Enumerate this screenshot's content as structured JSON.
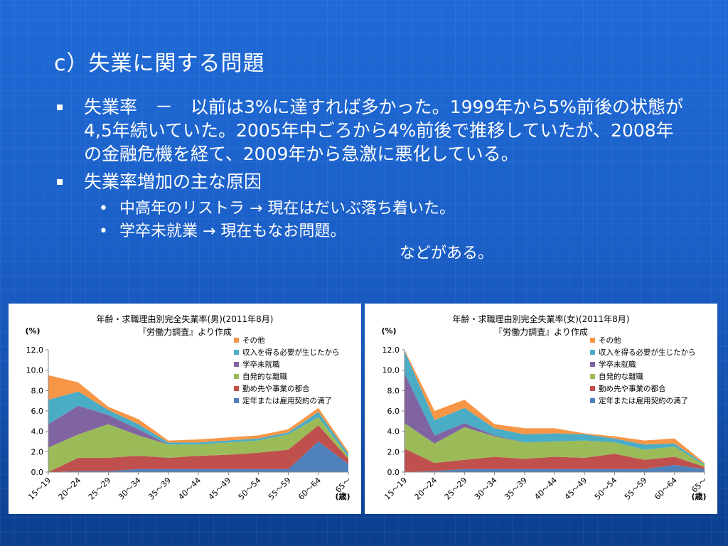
{
  "slide": {
    "title": "c）失業に関する問題",
    "bullets": [
      {
        "text": "失業率　－　以前は3%に達すれば多かった。1999年から5%前後の状態が4,5年続いていた。2005年中ごろから4%前後で推移していたが、2008年の金融危機を経て、2009年から急激に悪化している。"
      },
      {
        "text": "失業率増加の主な原因"
      }
    ],
    "subbullets": [
      {
        "text": "中高年のリストラ → 現在はだいぶ落ち着いた。"
      },
      {
        "text": "学卒未就業 → 現在もなお問題。"
      }
    ],
    "note": "などがある。"
  },
  "chart_data": [
    {
      "type": "area",
      "stacked": true,
      "title": "年齢・求職理由別完全失業率(男)(2011年8月)",
      "subtitle": "『労働力調査』より作成",
      "ylabel": "(%)",
      "xlabel": "(歳)",
      "ylim": [
        0,
        12
      ],
      "yticks": [
        "0.0",
        "2.0",
        "4.0",
        "6.0",
        "8.0",
        "10.0",
        "12.0"
      ],
      "categories": [
        "15～19",
        "20～24",
        "25～29",
        "30～34",
        "35～39",
        "40～44",
        "45～49",
        "50～54",
        "55～59",
        "60～64",
        "65～"
      ],
      "legend_position": "top-right",
      "series": [
        {
          "name": "定年または雇用契約の満了",
          "color": "#4f81bd",
          "values": [
            0.0,
            0.1,
            0.1,
            0.3,
            0.3,
            0.3,
            0.3,
            0.3,
            0.3,
            3.0,
            0.8
          ]
        },
        {
          "name": "勤め先や事業の都合",
          "color": "#c0504d",
          "values": [
            0.0,
            1.3,
            1.3,
            1.3,
            1.1,
            1.3,
            1.4,
            1.6,
            1.9,
            1.6,
            0.5
          ]
        },
        {
          "name": "自発的な離職",
          "color": "#9bbb59",
          "values": [
            2.4,
            2.3,
            3.3,
            2.0,
            1.3,
            1.1,
            1.2,
            1.2,
            1.5,
            0.8,
            0.2
          ]
        },
        {
          "name": "学卒未就職",
          "color": "#8064a2",
          "values": [
            2.3,
            2.8,
            0.9,
            0.6,
            0.0,
            0.0,
            0.0,
            0.0,
            0.0,
            0.0,
            0.0
          ]
        },
        {
          "name": "収入を得る必要が生じたから",
          "color": "#4bacc6",
          "values": [
            2.4,
            1.4,
            0.5,
            0.5,
            0.2,
            0.2,
            0.2,
            0.2,
            0.2,
            0.5,
            0.3
          ]
        },
        {
          "name": "その他",
          "color": "#f79646",
          "values": [
            2.4,
            0.9,
            0.3,
            0.5,
            0.2,
            0.3,
            0.3,
            0.3,
            0.3,
            0.4,
            0.2
          ]
        }
      ]
    },
    {
      "type": "area",
      "stacked": true,
      "title": "年齢・求職理由別完全失業率(女)(2011年8月)",
      "subtitle": "『労働力調査』より作成",
      "ylabel": "(%)",
      "xlabel": "(歳)",
      "ylim": [
        0,
        12
      ],
      "yticks": [
        "0.0",
        "2.0",
        "4.0",
        "6.0",
        "8.0",
        "10.0",
        "12.0"
      ],
      "categories": [
        "15～19",
        "20～24",
        "25～29",
        "30～34",
        "35～39",
        "40～44",
        "45～49",
        "50～54",
        "55～59",
        "60～64",
        "65～"
      ],
      "legend_position": "top-right",
      "series": [
        {
          "name": "定年または雇用契約の満了",
          "color": "#4f81bd",
          "values": [
            0.0,
            0.1,
            0.3,
            0.3,
            0.3,
            0.3,
            0.3,
            0.3,
            0.3,
            0.7,
            0.3
          ]
        },
        {
          "name": "勤め先や事業の都合",
          "color": "#c0504d",
          "values": [
            2.3,
            0.8,
            0.9,
            1.2,
            1.0,
            1.2,
            1.1,
            1.5,
            0.9,
            0.8,
            0.2
          ]
        },
        {
          "name": "自発的な離職",
          "color": "#9bbb59",
          "values": [
            2.5,
            1.9,
            3.2,
            2.0,
            1.6,
            1.5,
            1.7,
            1.1,
            1.0,
            1.0,
            0.2
          ]
        },
        {
          "name": "学卒未就職",
          "color": "#8064a2",
          "values": [
            4.9,
            0.8,
            0.4,
            0.1,
            0.0,
            0.0,
            0.0,
            0.0,
            0.0,
            0.0,
            0.0
          ]
        },
        {
          "name": "収入を得る必要が生じたから",
          "color": "#4bacc6",
          "values": [
            2.2,
            1.5,
            1.5,
            0.7,
            0.8,
            0.8,
            0.6,
            0.4,
            0.5,
            0.3,
            0.1
          ]
        },
        {
          "name": "その他",
          "color": "#f79646",
          "values": [
            0.1,
            0.9,
            0.8,
            0.4,
            0.6,
            0.5,
            0.1,
            0.2,
            0.4,
            0.5,
            0.1
          ]
        }
      ]
    }
  ]
}
